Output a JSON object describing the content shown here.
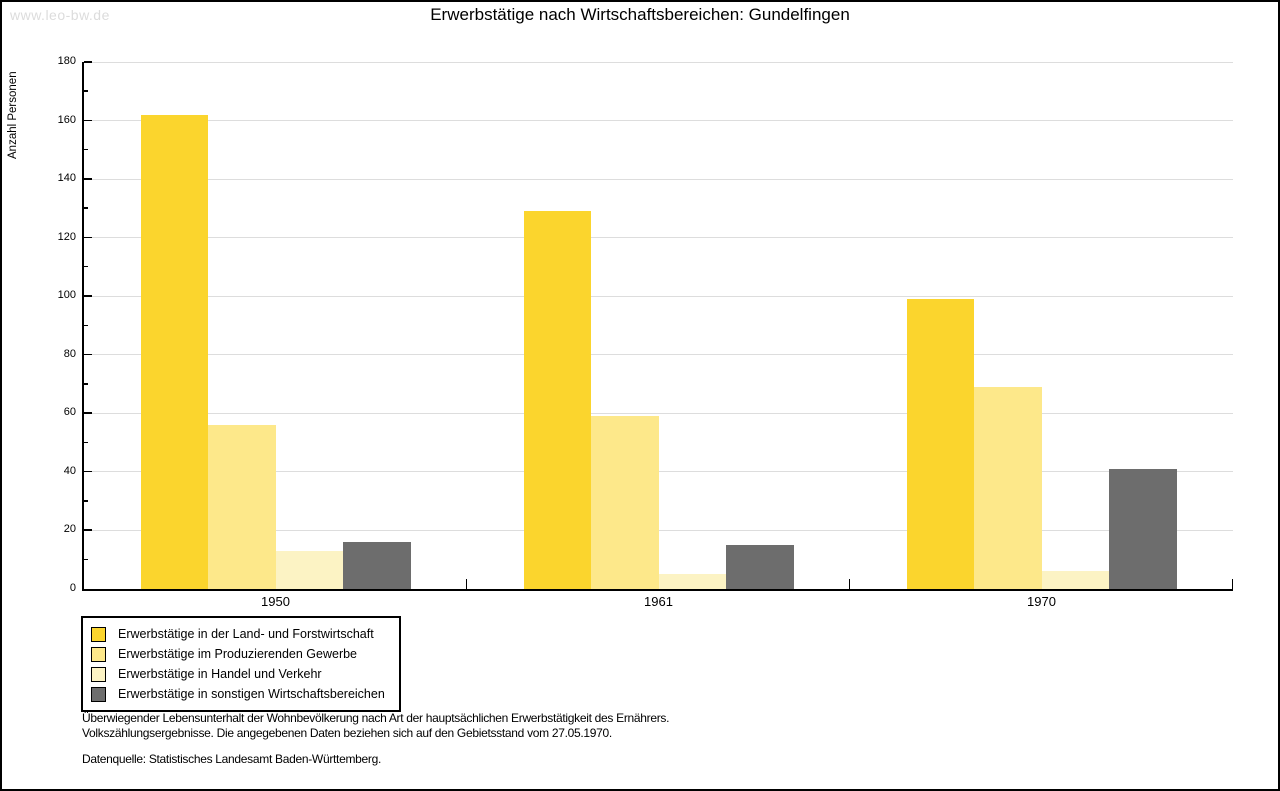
{
  "watermark": "www.leo-bw.de",
  "chart_data": {
    "type": "bar",
    "title": "Erwerbstätige nach Wirtschaftsbereichen: Gundelfingen",
    "ylabel": "Anzahl Personen",
    "xlabel": "",
    "categories": [
      "1950",
      "1961",
      "1970"
    ],
    "series": [
      {
        "name": "Erwerbstätige in der Land- und Forstwirtschaft",
        "color": "#FBD52D",
        "values": [
          162,
          129,
          99
        ]
      },
      {
        "name": "Erwerbstätige im Produzierenden Gewerbe",
        "color": "#FDE88A",
        "values": [
          56,
          59,
          69
        ]
      },
      {
        "name": "Erwerbstätige in Handel und Verkehr",
        "color": "#FCF3C4",
        "values": [
          13,
          5,
          6
        ]
      },
      {
        "name": "Erwerbstätige in sonstigen Wirtschaftsbereichen",
        "color": "#6D6D6D",
        "values": [
          16,
          15,
          41
        ]
      }
    ],
    "ylim": [
      0,
      180
    ],
    "ytick_major_step": 20,
    "ytick_minor_step": 10,
    "grid": true,
    "gridline_color": "#DDDDDD",
    "legend_position": "bottom-left"
  },
  "footer": {
    "line1": "Überwiegender Lebensunterhalt der Wohnbevölkerung nach Art der hauptsächlichen Erwerbstätigkeit des Ernährers.",
    "line2": "Volkszählungsergebnisse. Die angegebenen Daten beziehen sich auf den Gebietsstand vom 27.05.1970.",
    "source": "Datenquelle: Statistisches Landesamt Baden-Württemberg."
  }
}
